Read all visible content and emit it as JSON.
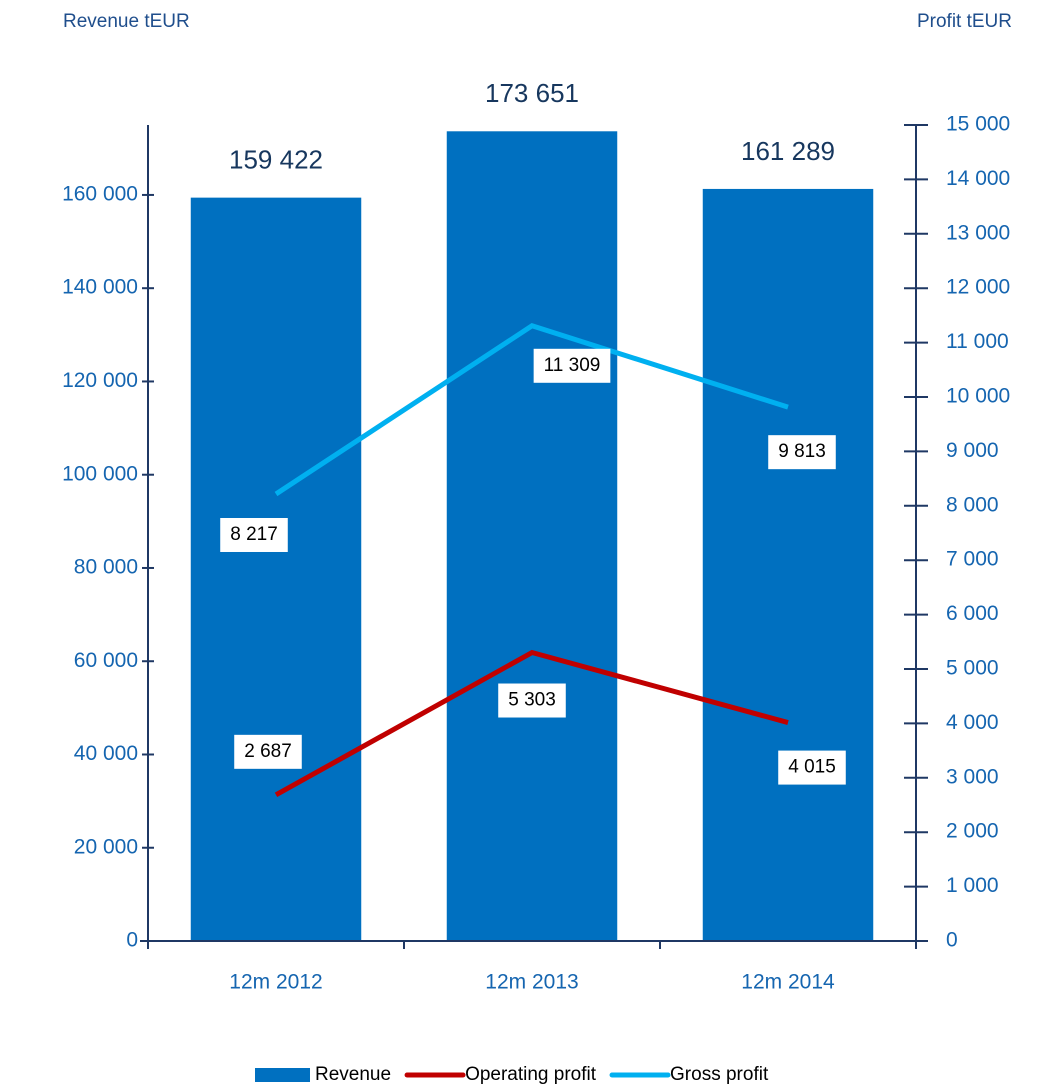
{
  "chart_data": {
    "type": "bar",
    "y_label": "Revenue  tEUR",
    "y2_label": "Profit  tEUR",
    "categories": [
      "12m 2012",
      "12m 2013",
      "12m 2014"
    ],
    "series": [
      {
        "name": "Revenue",
        "type": "bar",
        "color": "#0070c0",
        "values": [
          159422,
          173651,
          161289
        ],
        "value_labels": [
          "159 422",
          "173 651",
          "161 289"
        ]
      },
      {
        "name": "Operating profit",
        "type": "line",
        "axis": "y2",
        "color": "#c00000",
        "values": [
          2687,
          5303,
          4015
        ],
        "value_labels": [
          "2 687",
          "5 303",
          "4 015"
        ]
      },
      {
        "name": "Gross profit",
        "type": "line",
        "axis": "y2",
        "color": "#00b0f0",
        "values": [
          8217,
          11309,
          9813
        ],
        "value_labels": [
          "8 217",
          "11 309",
          "9 813"
        ]
      }
    ],
    "ylim": [
      0,
      175000
    ],
    "yticks": [
      0,
      {
        "value": 20000,
        "label": "20 000"
      },
      {
        "value": 40000,
        "label": "40 000"
      },
      {
        "value": 60000,
        "label": "60 000"
      },
      {
        "value": 80000,
        "label": "80 000"
      },
      {
        "value": 100000,
        "label": "100 000"
      },
      {
        "value": 120000,
        "label": "120 000"
      },
      {
        "value": 140000,
        "label": "140 000"
      },
      {
        "value": 160000,
        "label": "160 000"
      }
    ],
    "y2lim": [
      0,
      15000
    ],
    "y2ticks": [
      0,
      {
        "value": 1000,
        "label": "1 000"
      },
      {
        "value": 2000,
        "label": "2 000"
      },
      {
        "value": 3000,
        "label": "3 000"
      },
      {
        "value": 4000,
        "label": "4 000"
      },
      {
        "value": 5000,
        "label": "5 000"
      },
      {
        "value": 6000,
        "label": "6 000"
      },
      {
        "value": 7000,
        "label": "7 000"
      },
      {
        "value": 8000,
        "label": "8 000"
      },
      {
        "value": 9000,
        "label": "9 000"
      },
      {
        "value": 10000,
        "label": "10 000"
      },
      {
        "value": 11000,
        "label": "11 000"
      },
      {
        "value": 12000,
        "label": "12 000"
      },
      {
        "value": 13000,
        "label": "13 000"
      },
      {
        "value": 14000,
        "label": "14 000"
      },
      {
        "value": 15000,
        "label": "15 000"
      }
    ],
    "legend": "bottom",
    "grid": false
  }
}
